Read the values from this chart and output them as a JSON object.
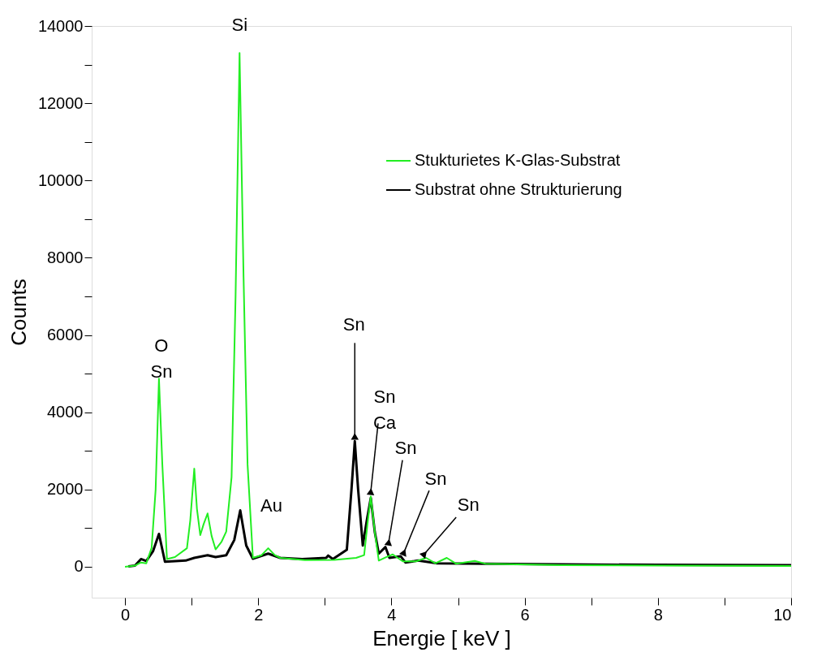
{
  "chart_data": {
    "type": "line",
    "xlabel": "Energie [ keV ]",
    "ylabel": "Counts",
    "xlim": [
      -0.5,
      10
    ],
    "ylim": [
      -800,
      14000
    ],
    "xticks": [
      0,
      {
        "value": 1,
        "label": null
      },
      2,
      {
        "value": 3,
        "label": null
      },
      4,
      {
        "value": 5,
        "label": null
      },
      6,
      {
        "value": 7,
        "label": null
      },
      8,
      {
        "value": 9,
        "label": null
      },
      10
    ],
    "yticks": [
      0,
      {
        "value": 1000,
        "label": null
      },
      2000,
      {
        "value": 3000,
        "label": null
      },
      4000,
      {
        "value": 5000,
        "label": null
      },
      6000,
      {
        "value": 7000,
        "label": null
      },
      8000,
      {
        "value": 9000,
        "label": null
      },
      10000,
      {
        "value": 11000,
        "label": null
      },
      12000,
      {
        "value": 13000,
        "label": null
      },
      14000
    ],
    "grid": false,
    "legend": "top right",
    "marker": "none",
    "line_style": "solid",
    "series": [
      {
        "name": "Stukturietes K-Glas-Substrat",
        "color": "#22ee22",
        "x": [
          0,
          0.15,
          0.24,
          0.32,
          0.4,
          0.46,
          0.51,
          0.56,
          0.63,
          0.75,
          0.93,
          0.98,
          1.04,
          1.08,
          1.13,
          1.18,
          1.24,
          1.3,
          1.36,
          1.45,
          1.52,
          1.6,
          1.66,
          1.72,
          1.78,
          1.84,
          1.92,
          2.05,
          2.15,
          2.25,
          2.33,
          2.7,
          3.14,
          3.47,
          3.59,
          3.64,
          3.69,
          3.75,
          3.81,
          3.92,
          4.02,
          4.17,
          4.37,
          4.52,
          4.66,
          4.83,
          4.97,
          5.25,
          5.41,
          6.55,
          8,
          10
        ],
        "values": [
          0,
          30,
          110,
          90,
          490,
          2000,
          4870,
          2670,
          200,
          250,
          480,
          1200,
          2540,
          1500,
          820,
          1100,
          1380,
          800,
          450,
          650,
          910,
          2320,
          7000,
          13300,
          7500,
          2650,
          230,
          300,
          480,
          300,
          230,
          170,
          180,
          230,
          300,
          1100,
          1820,
          900,
          160,
          250,
          320,
          140,
          140,
          230,
          90,
          230,
          80,
          150,
          80,
          40,
          30,
          20
        ]
      },
      {
        "name": "Substrat ohne Strukturierung",
        "color": "#000000",
        "x": [
          0.05,
          0.15,
          0.24,
          0.32,
          0.42,
          0.51,
          0.6,
          0.91,
          1.04,
          1.24,
          1.36,
          1.52,
          1.64,
          1.73,
          1.82,
          1.92,
          2.15,
          2.33,
          2.66,
          3.02,
          3.05,
          3.12,
          3.33,
          3.4,
          3.45,
          3.5,
          3.57,
          3.63,
          3.69,
          3.75,
          3.81,
          3.91,
          3.97,
          4.14,
          4.21,
          4.4,
          4.69,
          6.55,
          8,
          10
        ],
        "values": [
          10,
          30,
          200,
          150,
          400,
          850,
          130,
          160,
          230,
          300,
          250,
          300,
          690,
          1460,
          550,
          210,
          340,
          230,
          200,
          230,
          290,
          200,
          440,
          2000,
          3250,
          2000,
          550,
          1200,
          1780,
          900,
          340,
          510,
          230,
          270,
          110,
          160,
          90,
          60,
          50,
          40
        ]
      }
    ],
    "annotations": [
      {
        "text": "O\nSn",
        "x": 0.51,
        "y": 4870
      },
      {
        "text": "Si",
        "x": 1.72,
        "y": 13300
      },
      {
        "text": "Au",
        "x": 2.15,
        "y": 480
      },
      {
        "text": "Sn",
        "x": 3.45,
        "y": 3250
      },
      {
        "text": "Sn\nCa",
        "x": 3.69,
        "y": 1820
      },
      {
        "text": "Sn",
        "x": 3.91,
        "y": 510
      },
      {
        "text": "Sn",
        "x": 4.14,
        "y": 270
      },
      {
        "text": "Sn",
        "x": 4.46,
        "y": 270
      }
    ]
  }
}
